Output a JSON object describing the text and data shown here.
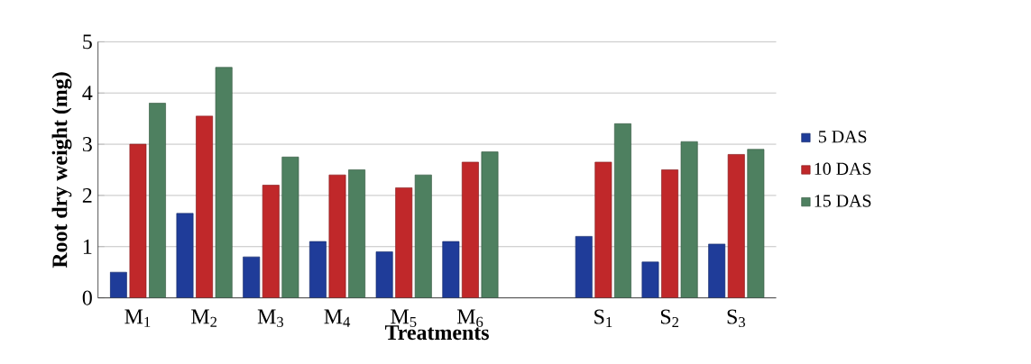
{
  "chart_data": {
    "type": "bar",
    "xlabel": "Treatments",
    "ylabel": "Root dry weight (mg)",
    "categories": [
      "M$_{1}$",
      "M$_{2}$",
      "M$_{3}$",
      "M$_{4}$",
      "M$_{5}$",
      "M$_{6}$",
      null,
      "S$_{1}$",
      "S$_{2}$",
      "S$_{3}$"
    ],
    "series": [
      {
        "name": "5 DAS",
        "color": "#1f3c99",
        "values": [
          0.5,
          1.65,
          0.8,
          1.1,
          0.9,
          1.1,
          null,
          1.2,
          0.7,
          1.05
        ]
      },
      {
        "name": "10 DAS",
        "color": "#c0282a",
        "values": [
          3.0,
          3.55,
          2.2,
          2.4,
          2.15,
          2.65,
          null,
          2.65,
          2.5,
          2.8
        ]
      },
      {
        "name": "15 DAS",
        "color": "#4e8060",
        "values": [
          3.8,
          4.5,
          2.75,
          2.5,
          2.4,
          2.85,
          null,
          3.4,
          3.05,
          2.9
        ]
      }
    ],
    "ylim": [
      0,
      5
    ],
    "yticks": [
      0,
      1,
      2,
      3,
      4,
      5
    ],
    "grid": "y",
    "legend": "right"
  }
}
